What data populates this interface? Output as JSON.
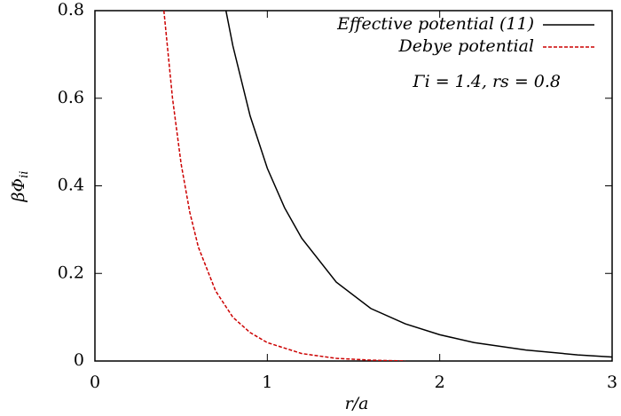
{
  "chart_data": {
    "type": "line",
    "xlabel": "r/a",
    "ylabel": "βΦ",
    "ylabel_sub": "ii",
    "annotation": "Γi = 1.4, rs = 0.8",
    "xlim": [
      0,
      3
    ],
    "ylim": [
      0,
      0.8
    ],
    "xticks": [
      0,
      1,
      2,
      3
    ],
    "yticks": [
      0,
      0.2,
      0.4,
      0.6,
      0.8
    ],
    "legend": "upper right",
    "series": [
      {
        "name": "Effective potential (11)",
        "color": "#000000",
        "dash": false,
        "x": [
          0.76,
          0.8,
          0.9,
          1.0,
          1.1,
          1.2,
          1.4,
          1.6,
          1.8,
          2.0,
          2.2,
          2.5,
          2.8,
          3.0
        ],
        "values": [
          0.8,
          0.72,
          0.56,
          0.44,
          0.35,
          0.28,
          0.18,
          0.12,
          0.085,
          0.06,
          0.042,
          0.025,
          0.014,
          0.009
        ]
      },
      {
        "name": "Debye potential",
        "color": "#cc0000",
        "dash": true,
        "x": [
          0.4,
          0.45,
          0.5,
          0.55,
          0.6,
          0.7,
          0.8,
          0.9,
          1.0,
          1.2,
          1.4,
          1.6,
          1.8
        ],
        "values": [
          0.8,
          0.6,
          0.45,
          0.34,
          0.26,
          0.16,
          0.1,
          0.065,
          0.042,
          0.017,
          0.006,
          0.002,
          0
        ]
      }
    ]
  }
}
